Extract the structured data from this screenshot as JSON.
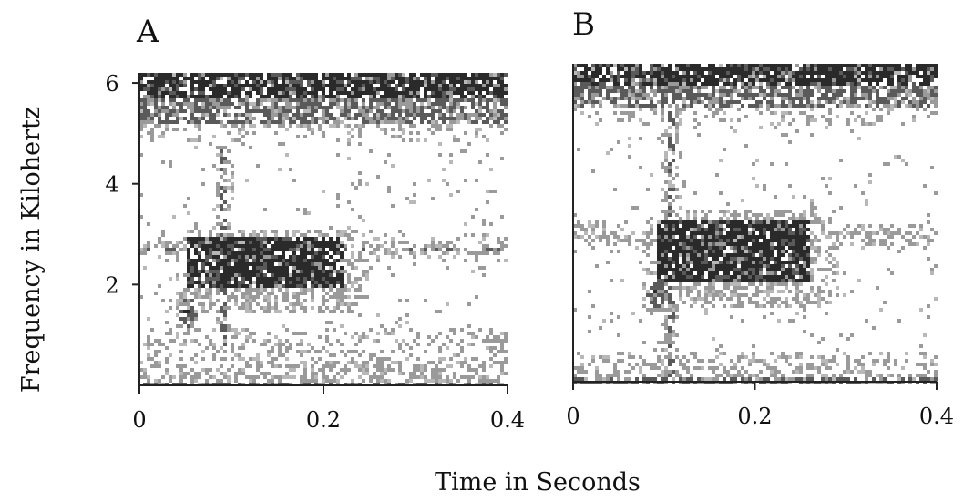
{
  "chart_data": [
    {
      "type": "heatmap",
      "panel_label": "A",
      "ylabel": "Frequency in Kilohertz",
      "xlabel": "Time in Seconds",
      "xlim": [
        0,
        0.4
      ],
      "ylim": [
        0,
        6.2
      ],
      "x_ticks": [
        0,
        0.2,
        0.4
      ],
      "x_tick_labels": [
        "0",
        "0.2",
        "0.4"
      ],
      "y_ticks": [
        2,
        4,
        6
      ],
      "y_tick_labels": [
        "2",
        "4",
        "6"
      ],
      "colors": {
        "background": "#ffffff",
        "noise": "#9a9a9a",
        "energy": "#5a5a5a",
        "dense": "#2a2a2a"
      },
      "spectral_features": {
        "high_band_khz": [
          5.2,
          6.2
        ],
        "low_band_khz": [
          0,
          1.2
        ],
        "harmonic_khz": 2.75,
        "vertical_pulse_time_s": 0.09,
        "vertical_pulse_range_khz": [
          0.8,
          4.8
        ],
        "call_onset_time_s": 0.05,
        "call_onset_khz": 1.5,
        "call_time_range_s": [
          0.05,
          0.22
        ],
        "call_freq_range_khz": [
          2.0,
          2.95
        ]
      }
    },
    {
      "type": "heatmap",
      "panel_label": "B",
      "xlim": [
        0,
        0.4
      ],
      "ylim": [
        0,
        6.2
      ],
      "x_ticks": [
        0,
        0.2,
        0.4
      ],
      "x_tick_labels": [
        "0",
        "0.2",
        "0.4"
      ],
      "colors": {
        "background": "#ffffff",
        "noise": "#9a9a9a",
        "energy": "#5a5a5a",
        "dense": "#2a2a2a"
      },
      "spectral_features": {
        "high_band_khz": [
          5.4,
          6.2
        ],
        "low_band_khz": [
          0,
          0.6
        ],
        "harmonic_khz": 2.9,
        "vertical_pulse_time_s": 0.105,
        "vertical_pulse_range_khz": [
          0.1,
          5.8
        ],
        "call_onset_time_s": 0.09,
        "call_onset_khz": 1.8,
        "call_time_range_s": [
          0.09,
          0.26
        ],
        "call_freq_range_khz": [
          2.0,
          3.2
        ]
      }
    }
  ]
}
